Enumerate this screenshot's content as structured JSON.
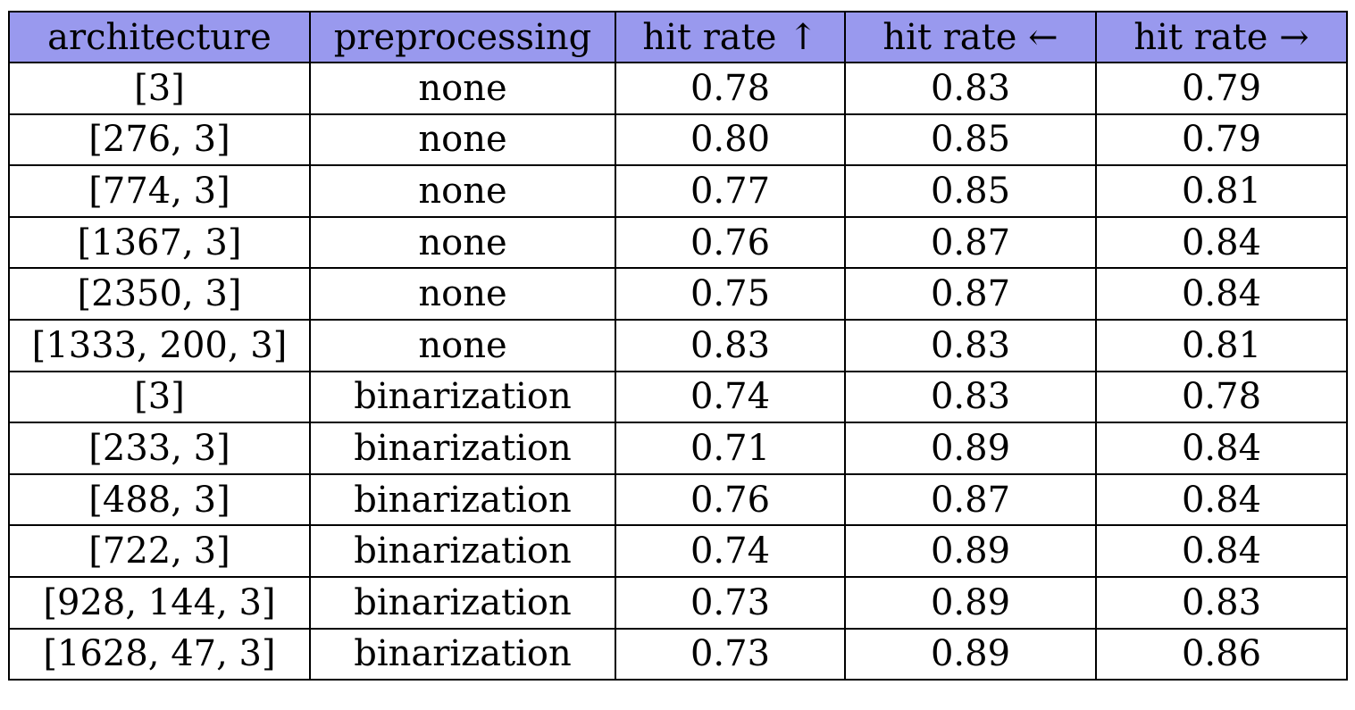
{
  "table": {
    "headers": [
      "architecture",
      "preprocessing",
      "hit rate ↑",
      "hit rate ←",
      "hit rate →"
    ],
    "header_background": "#9999ee",
    "rows": [
      [
        "[3]",
        "none",
        "0.78",
        "0.83",
        "0.79"
      ],
      [
        "[276, 3]",
        "none",
        "0.80",
        "0.85",
        "0.79"
      ],
      [
        "[774, 3]",
        "none",
        "0.77",
        "0.85",
        "0.81"
      ],
      [
        "[1367, 3]",
        "none",
        "0.76",
        "0.87",
        "0.84"
      ],
      [
        "[2350, 3]",
        "none",
        "0.75",
        "0.87",
        "0.84"
      ],
      [
        "[1333, 200, 3]",
        "none",
        "0.83",
        "0.83",
        "0.81"
      ],
      [
        "[3]",
        "binarization",
        "0.74",
        "0.83",
        "0.78"
      ],
      [
        "[233, 3]",
        "binarization",
        "0.71",
        "0.89",
        "0.84"
      ],
      [
        "[488, 3]",
        "binarization",
        "0.76",
        "0.87",
        "0.84"
      ],
      [
        "[722, 3]",
        "binarization",
        "0.74",
        "0.89",
        "0.84"
      ],
      [
        "[928, 144, 3]",
        "binarization",
        "0.73",
        "0.89",
        "0.83"
      ],
      [
        "[1628, 47, 3]",
        "binarization",
        "0.73",
        "0.89",
        "0.86"
      ]
    ]
  }
}
